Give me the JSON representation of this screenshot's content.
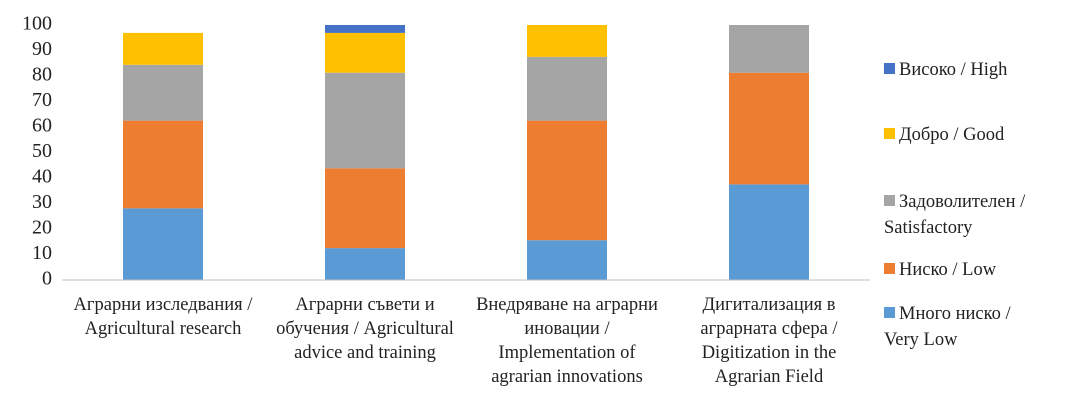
{
  "chart_data": {
    "type": "stacked_bar",
    "categories": [
      "Аграрни изследвания / Agricultural research",
      "Аграрни съвети и обучения / Agricultural advice and training",
      "Внедряване на аграрни иновации / Implementation of agrarian innovations",
      "Дигитализация в аграрната сфера / Digitization in the Agrarian Field"
    ],
    "series": [
      {
        "name": "Много ниско / Very Low",
        "color": "#5b9bd5",
        "values": [
          28.1,
          12.5,
          15.6,
          37.5
        ]
      },
      {
        "name": "Ниско / Low",
        "color": "#ed7d31",
        "values": [
          34.4,
          31.3,
          46.9,
          43.8
        ]
      },
      {
        "name": "Задоволителен / Satisfactory",
        "color": "#a5a5a5",
        "values": [
          21.9,
          37.5,
          25,
          18.7
        ]
      },
      {
        "name": "Добро / Good",
        "color": "#ffc000",
        "values": [
          12.5,
          15.6,
          12.5,
          0
        ]
      },
      {
        "name": "Високо / High",
        "color": "#4472c4",
        "values": [
          0,
          3.1,
          0,
          0
        ]
      }
    ],
    "ylim": [
      0,
      100
    ],
    "yticks": [
      0,
      10,
      20,
      30,
      40,
      50,
      60,
      70,
      80,
      90,
      100
    ],
    "grid": false,
    "legend": "right"
  }
}
